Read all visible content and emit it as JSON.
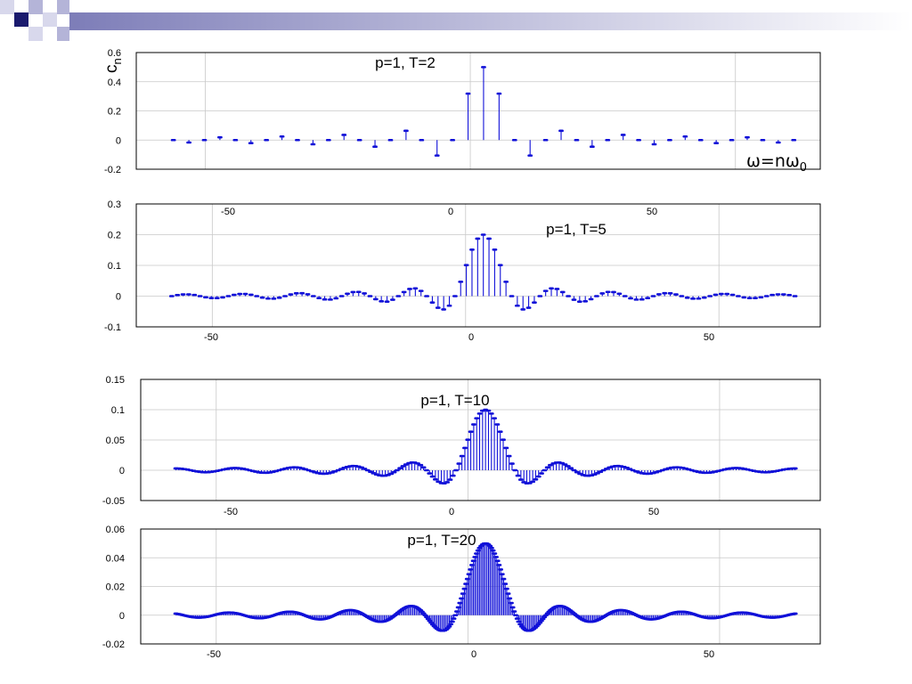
{
  "slide": {
    "decor_colors": [
      "#1a1a6e",
      "#7d7db8",
      "#b4b4d8",
      "#d8d8ec"
    ],
    "stem_color": "#1010d8"
  },
  "chart_data": [
    {
      "type": "stem",
      "annotation": "p=1, T=2",
      "ylabel": "c",
      "ylabel_sub": "n",
      "xlabel": "ω=nω",
      "xlabel_sub": "0",
      "p": 1,
      "T": 2,
      "n_range": [
        -20,
        20
      ],
      "xlim": [
        -63,
        66
      ],
      "ylim": [
        -0.2,
        0.6
      ],
      "yticks": [
        -0.2,
        0,
        0.2,
        0.4,
        0.6
      ],
      "yticklabels": [
        "-0.2",
        "0",
        "0.2",
        "0.4",
        "0.6"
      ],
      "xticks": [
        -50,
        0,
        50
      ],
      "xticklabels": [
        "-50",
        "0",
        "50"
      ],
      "grid": true
    },
    {
      "type": "stem",
      "annotation": "p=1, T=5",
      "p": 1,
      "T": 5,
      "n_range": [
        -55,
        55
      ],
      "xlim": [
        -65,
        70
      ],
      "ylim": [
        -0.1,
        0.3
      ],
      "yticks": [
        -0.1,
        0,
        0.1,
        0.2,
        0.3
      ],
      "yticklabels": [
        "-0.1",
        "0",
        "0.1",
        "0.2",
        "0.3"
      ],
      "xticks": [
        -50,
        0,
        50
      ],
      "xticklabels": [
        "-50",
        "0",
        "50"
      ],
      "grid": true
    },
    {
      "type": "stem",
      "annotation": "p=1, T=10",
      "p": 1,
      "T": 10,
      "n_range": [
        -105,
        105
      ],
      "xlim": [
        -65,
        70
      ],
      "ylim": [
        -0.05,
        0.15
      ],
      "yticks": [
        -0.05,
        0,
        0.05,
        0.1,
        0.15
      ],
      "yticklabels": [
        "-0.05",
        "0",
        "0.05",
        "0.1",
        "0.15"
      ],
      "xticks": [
        -50,
        0,
        50
      ],
      "xticklabels": [
        "-50",
        "0",
        "50"
      ],
      "grid": true
    },
    {
      "type": "stem",
      "annotation": "p=1, T=20",
      "p": 1,
      "T": 20,
      "n_range": [
        -205,
        205
      ],
      "xlim": [
        -65,
        70
      ],
      "ylim": [
        -0.02,
        0.06
      ],
      "yticks": [
        -0.02,
        0,
        0.02,
        0.04,
        0.06
      ],
      "yticklabels": [
        "-0.02",
        "0",
        "0.02",
        "0.04",
        "0.06"
      ],
      "xticks": [
        -50,
        0,
        50
      ],
      "xticklabels": [
        "-50",
        "0",
        "50"
      ],
      "grid": true
    }
  ]
}
